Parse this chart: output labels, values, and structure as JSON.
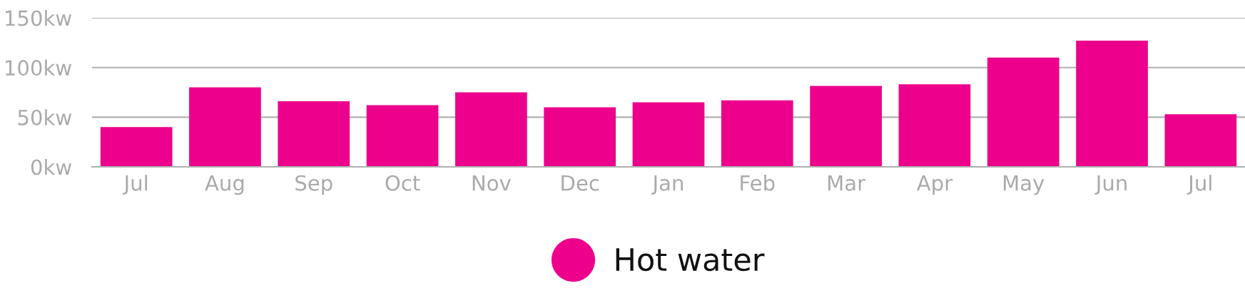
{
  "chart_data": {
    "type": "bar",
    "categories": [
      "Jul",
      "Aug",
      "Sep",
      "Oct",
      "Nov",
      "Dec",
      "Jan",
      "Feb",
      "Mar",
      "Apr",
      "May",
      "Jun",
      "Jul"
    ],
    "series": [
      {
        "name": "Hot water",
        "color": "#ec008c",
        "values": [
          40,
          80,
          66,
          62,
          75,
          60,
          65,
          67,
          81.5,
          83,
          110,
          127,
          53
        ]
      }
    ],
    "ylim": [
      0,
      150
    ],
    "yticks": [
      {
        "value": 0,
        "label": "0kw"
      },
      {
        "value": 50,
        "label": "50kw"
      },
      {
        "value": 100,
        "label": "100kw"
      },
      {
        "value": 150,
        "label": "150kw"
      }
    ],
    "grid": "y",
    "legend": "bottom"
  }
}
